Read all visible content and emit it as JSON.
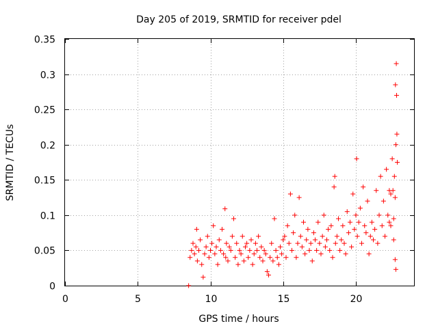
{
  "chart_data": {
    "type": "scatter",
    "title": "Day 205 of 2019, SRMTID for receiver pdel",
    "xlabel": "GPS time / hours",
    "ylabel": "SRMTID / TECUs",
    "xlim": [
      0,
      24
    ],
    "ylim": [
      0,
      0.35
    ],
    "xticks": [
      0,
      5,
      10,
      15,
      20
    ],
    "xtick_labels": [
      "0",
      "5",
      "10",
      "15",
      "20"
    ],
    "yticks": [
      0,
      0.05,
      0.1,
      0.15,
      0.2,
      0.25,
      0.3,
      0.35
    ],
    "ytick_labels": [
      "0",
      "0.05",
      "0.1",
      "0.15",
      "0.2",
      "0.25",
      "0.3",
      "0.35"
    ],
    "grid": true,
    "marker": "+",
    "color": "#ff0000",
    "series": [
      {
        "name": "SRMTID",
        "points": [
          [
            8.5,
            0.0
          ],
          [
            8.6,
            0.04
          ],
          [
            8.7,
            0.05
          ],
          [
            8.8,
            0.06
          ],
          [
            8.9,
            0.045
          ],
          [
            9.0,
            0.055
          ],
          [
            9.05,
            0.08
          ],
          [
            9.1,
            0.035
          ],
          [
            9.2,
            0.05
          ],
          [
            9.3,
            0.065
          ],
          [
            9.4,
            0.03
          ],
          [
            9.5,
            0.012
          ],
          [
            9.6,
            0.045
          ],
          [
            9.7,
            0.055
          ],
          [
            9.8,
            0.07
          ],
          [
            9.9,
            0.04
          ],
          [
            10.0,
            0.05
          ],
          [
            10.1,
            0.06
          ],
          [
            10.2,
            0.085
          ],
          [
            10.3,
            0.045
          ],
          [
            10.4,
            0.055
          ],
          [
            10.5,
            0.03
          ],
          [
            10.6,
            0.065
          ],
          [
            10.7,
            0.05
          ],
          [
            10.8,
            0.08
          ],
          [
            10.9,
            0.045
          ],
          [
            11.0,
            0.109
          ],
          [
            11.05,
            0.04
          ],
          [
            11.1,
            0.06
          ],
          [
            11.2,
            0.035
          ],
          [
            11.3,
            0.055
          ],
          [
            11.4,
            0.05
          ],
          [
            11.5,
            0.07
          ],
          [
            11.6,
            0.095
          ],
          [
            11.7,
            0.04
          ],
          [
            11.8,
            0.06
          ],
          [
            11.9,
            0.03
          ],
          [
            12.0,
            0.05
          ],
          [
            12.1,
            0.045
          ],
          [
            12.2,
            0.07
          ],
          [
            12.3,
            0.035
          ],
          [
            12.4,
            0.055
          ],
          [
            12.5,
            0.06
          ],
          [
            12.6,
            0.04
          ],
          [
            12.7,
            0.05
          ],
          [
            12.8,
            0.065
          ],
          [
            12.9,
            0.03
          ],
          [
            13.0,
            0.045
          ],
          [
            13.1,
            0.06
          ],
          [
            13.2,
            0.05
          ],
          [
            13.3,
            0.07
          ],
          [
            13.4,
            0.04
          ],
          [
            13.5,
            0.055
          ],
          [
            13.6,
            0.035
          ],
          [
            13.7,
            0.05
          ],
          [
            13.8,
            0.045
          ],
          [
            13.9,
            0.02
          ],
          [
            14.0,
            0.015
          ],
          [
            14.1,
            0.04
          ],
          [
            14.2,
            0.06
          ],
          [
            14.3,
            0.035
          ],
          [
            14.4,
            0.095
          ],
          [
            14.5,
            0.05
          ],
          [
            14.6,
            0.04
          ],
          [
            14.7,
            0.03
          ],
          [
            14.8,
            0.055
          ],
          [
            14.9,
            0.045
          ],
          [
            15.0,
            0.065
          ],
          [
            15.1,
            0.07
          ],
          [
            15.2,
            0.04
          ],
          [
            15.3,
            0.085
          ],
          [
            15.4,
            0.06
          ],
          [
            15.5,
            0.13
          ],
          [
            15.6,
            0.05
          ],
          [
            15.7,
            0.075
          ],
          [
            15.8,
            0.1
          ],
          [
            15.9,
            0.04
          ],
          [
            16.0,
            0.06
          ],
          [
            16.1,
            0.125
          ],
          [
            16.2,
            0.07
          ],
          [
            16.3,
            0.055
          ],
          [
            16.4,
            0.09
          ],
          [
            16.5,
            0.045
          ],
          [
            16.6,
            0.065
          ],
          [
            16.7,
            0.08
          ],
          [
            16.8,
            0.05
          ],
          [
            16.9,
            0.06
          ],
          [
            17.0,
            0.035
          ],
          [
            17.1,
            0.075
          ],
          [
            17.2,
            0.065
          ],
          [
            17.3,
            0.05
          ],
          [
            17.4,
            0.09
          ],
          [
            17.5,
            0.06
          ],
          [
            17.6,
            0.045
          ],
          [
            17.7,
            0.07
          ],
          [
            17.8,
            0.1
          ],
          [
            17.9,
            0.055
          ],
          [
            18.0,
            0.065
          ],
          [
            18.1,
            0.08
          ],
          [
            18.2,
            0.05
          ],
          [
            18.3,
            0.085
          ],
          [
            18.4,
            0.04
          ],
          [
            18.5,
            0.14
          ],
          [
            18.55,
            0.155
          ],
          [
            18.6,
            0.06
          ],
          [
            18.7,
            0.07
          ],
          [
            18.8,
            0.095
          ],
          [
            18.9,
            0.05
          ],
          [
            19.0,
            0.065
          ],
          [
            19.1,
            0.085
          ],
          [
            19.2,
            0.06
          ],
          [
            19.3,
            0.045
          ],
          [
            19.4,
            0.105
          ],
          [
            19.5,
            0.075
          ],
          [
            19.6,
            0.09
          ],
          [
            19.7,
            0.055
          ],
          [
            19.8,
            0.13
          ],
          [
            19.9,
            0.08
          ],
          [
            20.0,
            0.1
          ],
          [
            20.05,
            0.18
          ],
          [
            20.1,
            0.07
          ],
          [
            20.2,
            0.09
          ],
          [
            20.3,
            0.11
          ],
          [
            20.4,
            0.06
          ],
          [
            20.5,
            0.14
          ],
          [
            20.6,
            0.085
          ],
          [
            20.7,
            0.075
          ],
          [
            20.8,
            0.12
          ],
          [
            20.9,
            0.045
          ],
          [
            21.0,
            0.07
          ],
          [
            21.1,
            0.09
          ],
          [
            21.2,
            0.065
          ],
          [
            21.3,
            0.08
          ],
          [
            21.4,
            0.135
          ],
          [
            21.5,
            0.06
          ],
          [
            21.6,
            0.1
          ],
          [
            21.7,
            0.155
          ],
          [
            21.8,
            0.085
          ],
          [
            21.9,
            0.12
          ],
          [
            22.0,
            0.07
          ],
          [
            22.1,
            0.165
          ],
          [
            22.2,
            0.1
          ],
          [
            22.3,
            0.09
          ],
          [
            22.4,
            0.13
          ],
          [
            22.5,
            0.18
          ],
          [
            22.55,
            0.135
          ],
          [
            22.6,
            0.095
          ],
          [
            22.65,
            0.155
          ],
          [
            22.7,
            0.125
          ],
          [
            22.72,
            0.285
          ],
          [
            22.75,
            0.2
          ],
          [
            22.78,
            0.315
          ],
          [
            22.8,
            0.27
          ],
          [
            22.82,
            0.215
          ],
          [
            22.85,
            0.175
          ],
          [
            22.7,
            0.037
          ],
          [
            22.75,
            0.023
          ],
          [
            22.6,
            0.065
          ],
          [
            22.3,
            0.135
          ],
          [
            22.4,
            0.085
          ]
        ]
      }
    ]
  }
}
